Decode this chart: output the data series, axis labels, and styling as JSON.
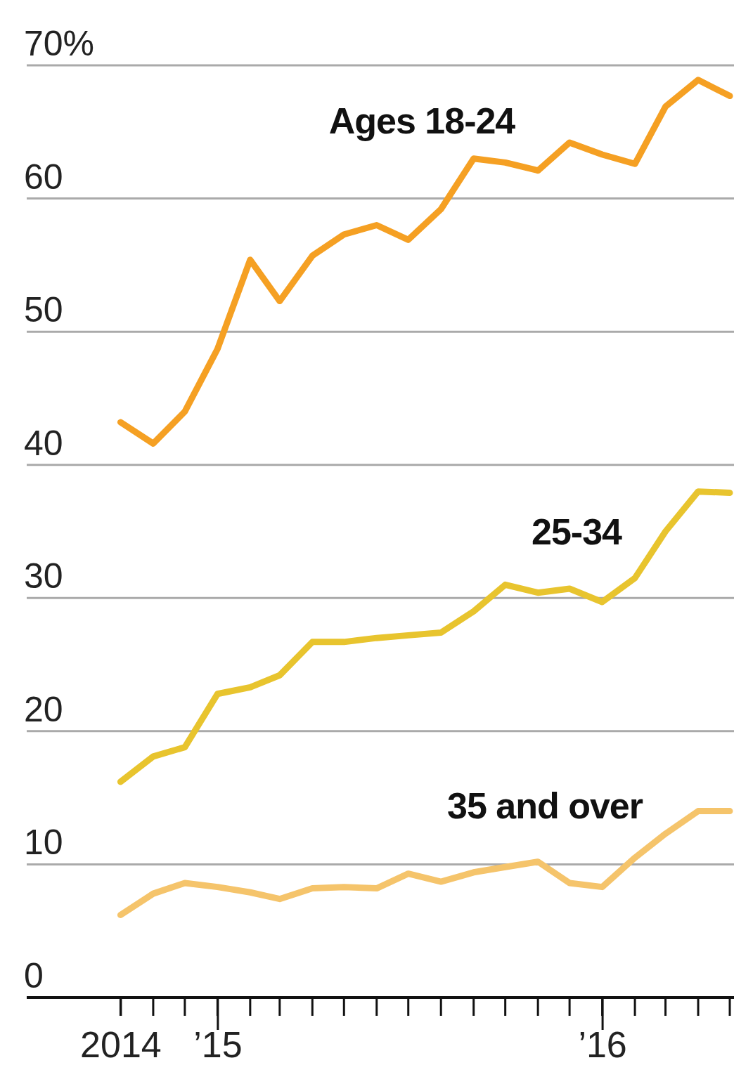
{
  "chart_data": {
    "type": "line",
    "x": [
      "2014-10",
      "2014-11",
      "2014-12",
      "2015-01",
      "2015-02",
      "2015-03",
      "2015-04",
      "2015-05",
      "2015-06",
      "2015-07",
      "2015-08",
      "2015-09",
      "2015-10",
      "2015-11",
      "2015-12",
      "2016-01",
      "2016-02",
      "2016-03",
      "2016-04",
      "2016-05"
    ],
    "series": [
      {
        "name": "Ages 18-24",
        "color": "#f5a023",
        "values": [
          43.2,
          41.6,
          44.0,
          48.7,
          55.4,
          52.3,
          55.7,
          57.3,
          58.0,
          56.9,
          59.2,
          63.0,
          62.7,
          62.1,
          64.2,
          63.3,
          62.6,
          66.9,
          68.9,
          67.7
        ]
      },
      {
        "name": "25-34",
        "color": "#e8c42e",
        "values": [
          16.2,
          18.1,
          18.8,
          22.8,
          23.3,
          24.2,
          26.7,
          26.7,
          27.0,
          27.2,
          27.4,
          29.0,
          31.0,
          30.4,
          30.7,
          29.7,
          31.5,
          35.0,
          38.0,
          37.9
        ]
      },
      {
        "name": "35 and over",
        "color": "#f5c46b",
        "values": [
          6.2,
          7.8,
          8.6,
          8.3,
          7.9,
          7.4,
          8.2,
          8.3,
          8.2,
          9.3,
          8.7,
          9.4,
          9.8,
          10.2,
          8.6,
          8.3,
          10.5,
          12.3,
          14.0,
          14.0
        ]
      }
    ],
    "xlim": [
      "2014-07-04",
      "2016-05-05"
    ],
    "xticks": [
      {
        "value": "2014-10",
        "label": "2014"
      },
      {
        "value": "2015-01",
        "label": "’15"
      },
      {
        "value": "2016-01",
        "label": "’16"
      }
    ],
    "ylim": [
      0,
      70
    ],
    "yticks": [
      0,
      10,
      20,
      30,
      40,
      50,
      60,
      {
        "value": 70,
        "label": "70%"
      }
    ],
    "grid": "y",
    "line_style": "solid"
  }
}
